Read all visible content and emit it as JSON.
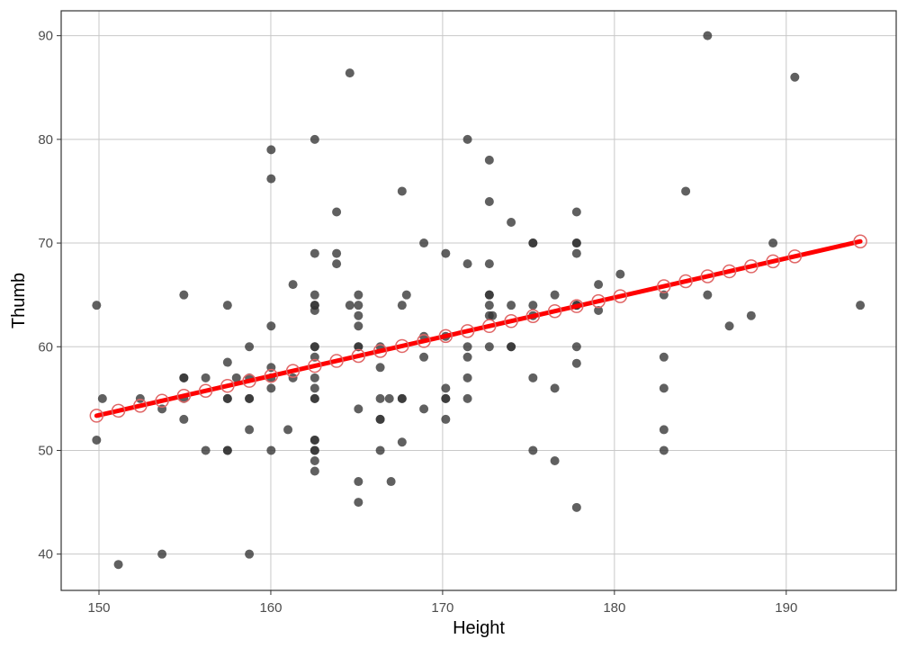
{
  "chart_data": {
    "type": "scatter",
    "xlabel": "Height",
    "ylabel": "Thumb",
    "xlim": [
      147.8,
      196.4
    ],
    "ylim": [
      36.5,
      92.4
    ],
    "x_ticks": [
      150,
      160,
      170,
      180,
      190
    ],
    "y_ticks": [
      40,
      50,
      60,
      70,
      80,
      90
    ],
    "grid": true,
    "colors": {
      "points": "#333333",
      "fit_line": "#ff0000",
      "fitted_points": "#e06666",
      "grid": "#c8c8c8",
      "panel_border": "#333333"
    },
    "series": [
      {
        "points": [
          [
            149.86,
            64
          ],
          [
            149.86,
            51
          ],
          [
            150.2,
            55
          ],
          [
            151.13,
            39
          ],
          [
            152.4,
            55
          ],
          [
            153.67,
            40
          ],
          [
            153.67,
            54
          ],
          [
            154.94,
            65
          ],
          [
            154.94,
            57
          ],
          [
            154.94,
            57
          ],
          [
            154.94,
            55
          ],
          [
            154.94,
            53
          ],
          [
            156.21,
            57
          ],
          [
            156.21,
            50
          ],
          [
            157.48,
            64
          ],
          [
            157.48,
            58.5
          ],
          [
            157.48,
            55
          ],
          [
            157.48,
            55
          ],
          [
            157.48,
            50
          ],
          [
            157.48,
            50
          ],
          [
            158.0,
            57
          ],
          [
            158.75,
            60
          ],
          [
            158.75,
            55
          ],
          [
            158.75,
            55
          ],
          [
            158.75,
            52
          ],
          [
            158.75,
            40
          ],
          [
            158.75,
            57
          ],
          [
            160.02,
            79
          ],
          [
            160.02,
            76.2
          ],
          [
            160.02,
            62
          ],
          [
            160.02,
            58
          ],
          [
            160.02,
            57
          ],
          [
            160.02,
            56
          ],
          [
            160.02,
            50
          ],
          [
            161.0,
            52
          ],
          [
            161.29,
            66
          ],
          [
            161.29,
            57
          ],
          [
            162.56,
            80
          ],
          [
            162.56,
            69
          ],
          [
            162.56,
            65
          ],
          [
            162.56,
            64
          ],
          [
            162.56,
            64
          ],
          [
            162.56,
            63.5
          ],
          [
            162.56,
            60
          ],
          [
            162.56,
            60
          ],
          [
            162.56,
            59
          ],
          [
            162.56,
            57
          ],
          [
            162.56,
            56
          ],
          [
            162.56,
            55
          ],
          [
            162.56,
            55
          ],
          [
            162.56,
            51
          ],
          [
            162.56,
            51
          ],
          [
            162.56,
            50
          ],
          [
            162.56,
            50
          ],
          [
            162.56,
            49
          ],
          [
            162.56,
            48
          ],
          [
            163.83,
            73
          ],
          [
            163.83,
            69
          ],
          [
            163.83,
            68
          ],
          [
            164.6,
            86.4
          ],
          [
            164.6,
            64
          ],
          [
            165.1,
            65
          ],
          [
            165.1,
            64
          ],
          [
            165.1,
            63
          ],
          [
            165.1,
            62
          ],
          [
            165.1,
            60
          ],
          [
            165.1,
            60
          ],
          [
            165.1,
            54
          ],
          [
            165.1,
            47
          ],
          [
            165.1,
            45
          ],
          [
            166.37,
            60
          ],
          [
            166.37,
            58
          ],
          [
            166.37,
            55
          ],
          [
            166.37,
            53
          ],
          [
            166.37,
            53
          ],
          [
            166.37,
            50
          ],
          [
            166.9,
            55
          ],
          [
            167.0,
            47
          ],
          [
            167.64,
            75
          ],
          [
            167.64,
            64
          ],
          [
            167.64,
            55
          ],
          [
            167.64,
            55
          ],
          [
            167.64,
            50.8
          ],
          [
            167.9,
            65
          ],
          [
            168.91,
            70
          ],
          [
            168.91,
            61
          ],
          [
            168.91,
            59
          ],
          [
            168.91,
            54
          ],
          [
            170.18,
            69
          ],
          [
            170.18,
            61
          ],
          [
            170.18,
            56
          ],
          [
            170.18,
            55
          ],
          [
            170.18,
            55
          ],
          [
            170.18,
            53
          ],
          [
            171.45,
            80
          ],
          [
            171.45,
            68
          ],
          [
            171.45,
            60
          ],
          [
            171.45,
            59
          ],
          [
            171.45,
            57
          ],
          [
            171.45,
            55
          ],
          [
            172.72,
            78
          ],
          [
            172.72,
            74
          ],
          [
            172.72,
            68
          ],
          [
            172.72,
            65
          ],
          [
            172.72,
            65
          ],
          [
            172.72,
            64
          ],
          [
            172.72,
            63
          ],
          [
            172.72,
            60
          ],
          [
            172.9,
            63
          ],
          [
            173.99,
            72
          ],
          [
            173.99,
            64
          ],
          [
            173.99,
            60
          ],
          [
            173.99,
            60
          ],
          [
            175.26,
            70
          ],
          [
            175.26,
            70
          ],
          [
            175.26,
            64
          ],
          [
            175.26,
            63
          ],
          [
            175.26,
            57
          ],
          [
            175.26,
            50
          ],
          [
            176.53,
            65
          ],
          [
            176.53,
            56
          ],
          [
            176.53,
            49
          ],
          [
            177.8,
            73
          ],
          [
            177.8,
            70
          ],
          [
            177.8,
            70
          ],
          [
            177.8,
            69
          ],
          [
            177.8,
            64
          ],
          [
            177.8,
            64
          ],
          [
            177.8,
            60
          ],
          [
            177.8,
            58.4
          ],
          [
            177.8,
            44.5
          ],
          [
            179.07,
            66
          ],
          [
            179.07,
            63.5
          ],
          [
            180.34,
            67
          ],
          [
            182.88,
            65
          ],
          [
            182.88,
            59
          ],
          [
            182.88,
            56
          ],
          [
            182.88,
            52
          ],
          [
            182.88,
            50
          ],
          [
            184.15,
            75
          ],
          [
            185.42,
            90
          ],
          [
            185.42,
            65
          ],
          [
            186.69,
            62
          ],
          [
            187.96,
            63
          ],
          [
            189.23,
            70
          ],
          [
            190.5,
            86
          ],
          [
            194.31,
            64
          ]
        ]
      }
    ],
    "fit": {
      "intercept": -3.33,
      "slope": 0.3782,
      "x_values": [
        149.86,
        151.13,
        152.4,
        153.67,
        154.94,
        156.21,
        157.48,
        158.75,
        160.02,
        161.29,
        162.56,
        163.83,
        165.1,
        166.37,
        167.64,
        168.91,
        170.18,
        171.45,
        172.72,
        173.99,
        175.26,
        176.53,
        177.8,
        179.07,
        180.34,
        182.88,
        184.15,
        185.42,
        186.69,
        187.96,
        189.23,
        190.5,
        194.31
      ]
    }
  }
}
